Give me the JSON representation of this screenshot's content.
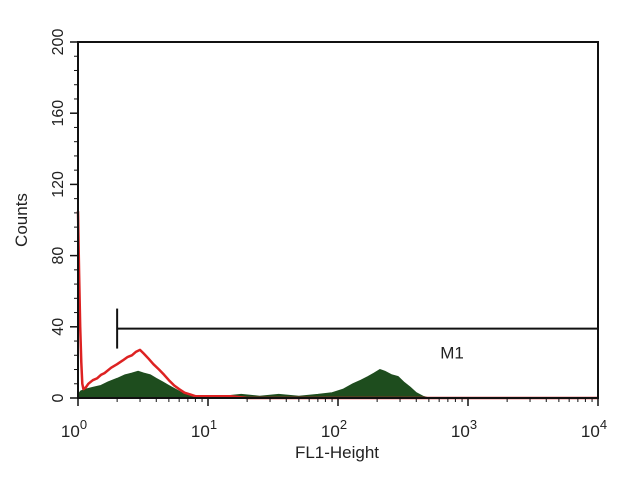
{
  "chart_data": {
    "type": "area",
    "xlabel": "FL1-Height",
    "ylabel": "Counts",
    "x_scale": "log",
    "xlim": [
      1,
      10000
    ],
    "ylim": [
      0,
      200
    ],
    "x_ticks": [
      {
        "value": 1,
        "base": "10",
        "exp": "0"
      },
      {
        "value": 10,
        "base": "10",
        "exp": "1"
      },
      {
        "value": 100,
        "base": "10",
        "exp": "2"
      },
      {
        "value": 1000,
        "base": "10",
        "exp": "3"
      },
      {
        "value": 10000,
        "base": "10",
        "exp": "4"
      }
    ],
    "y_ticks": [
      "0",
      "40",
      "80",
      "120",
      "160",
      "200"
    ],
    "grid": false,
    "marker": {
      "label": "M1",
      "x_start": 2.0,
      "x_end": 10000,
      "y": 39
    },
    "series": [
      {
        "color": "#1e4d1e",
        "fill": true,
        "x": [
          1.0,
          1.05,
          1.15,
          1.3,
          1.5,
          1.7,
          2.0,
          2.3,
          2.6,
          2.9,
          3.2,
          3.6,
          4.0,
          4.5,
          5.0,
          5.6,
          6.3,
          7.1,
          8.0,
          9.0,
          10,
          13,
          18,
          25,
          35,
          50,
          70,
          90,
          110,
          130,
          150,
          170,
          190,
          210,
          230,
          260,
          290,
          320,
          360,
          400,
          450,
          500,
          700,
          1000,
          2000,
          5000,
          10000
        ],
        "y": [
          2,
          4,
          5,
          6,
          7,
          9,
          11,
          13,
          14,
          15,
          14,
          13,
          11,
          9,
          7,
          5,
          3,
          2,
          1,
          1,
          1,
          1,
          2,
          1,
          2,
          1,
          2,
          3,
          5,
          8,
          10,
          12,
          14,
          16,
          15,
          13,
          12,
          9,
          6,
          3,
          1,
          0,
          0,
          0,
          0,
          0,
          0
        ]
      },
      {
        "color": "#dd2222",
        "fill": false,
        "x": [
          1.0,
          1.02,
          1.04,
          1.06,
          1.08,
          1.1,
          1.15,
          1.2,
          1.3,
          1.4,
          1.5,
          1.6,
          1.8,
          2.0,
          2.2,
          2.4,
          2.6,
          2.8,
          3.0,
          3.2,
          3.5,
          3.8,
          4.2,
          4.6,
          5.0,
          5.5,
          6.0,
          6.6,
          7.3,
          8.0,
          9.0,
          10,
          12,
          15,
          20,
          30,
          50,
          100,
          300,
          1000,
          3000,
          10000
        ],
        "y": [
          105,
          70,
          40,
          20,
          8,
          5,
          6,
          8,
          10,
          11,
          13,
          14,
          17,
          19,
          21,
          23,
          24,
          26,
          27,
          25,
          22,
          19,
          16,
          13,
          10,
          7,
          5,
          3,
          2,
          1,
          1,
          1,
          1,
          1,
          0,
          0,
          0,
          0,
          0,
          0,
          0,
          0
        ]
      }
    ]
  }
}
